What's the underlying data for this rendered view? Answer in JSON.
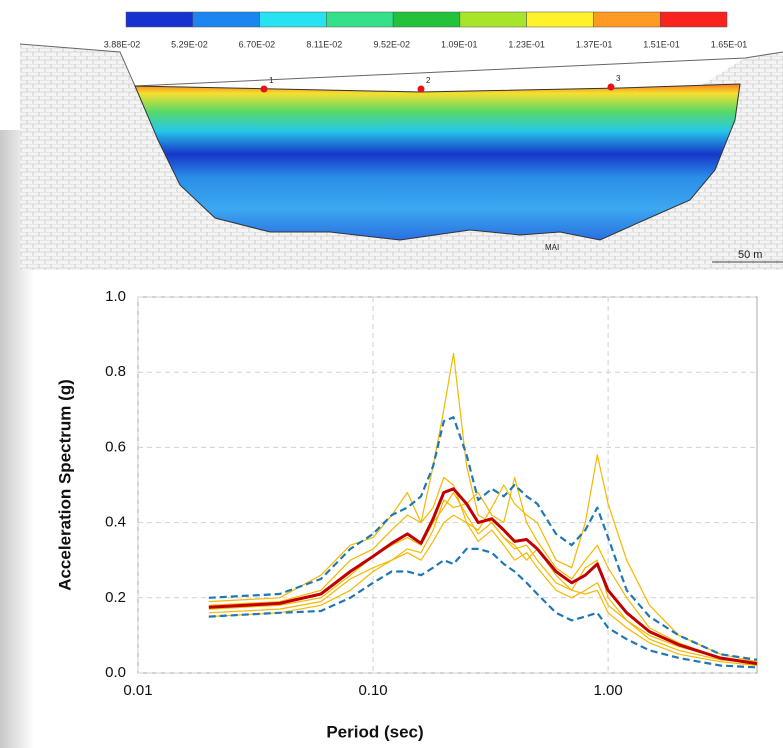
{
  "colorbar": {
    "colors": [
      "#1633d2",
      "#1b86ef",
      "#27e3f2",
      "#35e08a",
      "#22c23a",
      "#a8e52a",
      "#fff12a",
      "#ff9a22",
      "#f8221e"
    ],
    "labels": [
      "3.88E-02",
      "5.29E-02",
      "6.70E-02",
      "8.11E-02",
      "9.52E-02",
      "1.09E-01",
      "1.23E-01",
      "1.37E-01",
      "1.51E-01",
      "1.65E-01"
    ]
  },
  "section": {
    "markers": [
      "1",
      "2",
      "3"
    ],
    "label": "MAI",
    "scale": "50 m"
  },
  "chart_data": {
    "type": "line",
    "xlabel": "Period (sec)",
    "ylabel": "Acceleration Spectrum (g)",
    "xlog": true,
    "grid": true,
    "xlim": [
      0.01,
      4.3
    ],
    "ylim": [
      0,
      1
    ],
    "xticks": [
      0.01,
      {
        "value": 0.1,
        "label": "0.10"
      },
      {
        "value": 1,
        "label": "1.00"
      }
    ],
    "yticks": [
      {
        "value": 0,
        "label": "0.0"
      },
      {
        "value": 0.2,
        "label": "0.2"
      },
      {
        "value": 0.4,
        "label": "0.4"
      },
      {
        "value": 0.6,
        "label": "0.6"
      },
      {
        "value": 0.8,
        "label": "0.8"
      },
      {
        "value": 1,
        "label": "1.0"
      }
    ],
    "x": [
      0.02,
      0.04,
      0.06,
      0.08,
      0.1,
      0.12,
      0.14,
      0.16,
      0.18,
      0.2,
      0.22,
      0.25,
      0.28,
      0.32,
      0.36,
      0.4,
      0.45,
      0.5,
      0.6,
      0.7,
      0.8,
      0.9,
      1.0,
      1.2,
      1.5,
      2.0,
      3.0,
      4.3
    ],
    "series": [
      {
        "color": "#f5b800",
        "style": "solid",
        "width": 1.2,
        "values": [
          0.18,
          0.19,
          0.22,
          0.3,
          0.33,
          0.38,
          0.42,
          0.4,
          0.55,
          0.7,
          0.85,
          0.55,
          0.42,
          0.4,
          0.36,
          0.33,
          0.34,
          0.3,
          0.24,
          0.22,
          0.28,
          0.3,
          0.2,
          0.14,
          0.1,
          0.07,
          0.04,
          0.03
        ]
      },
      {
        "color": "#f5b800",
        "style": "solid",
        "width": 1.2,
        "values": [
          0.16,
          0.17,
          0.19,
          0.25,
          0.28,
          0.3,
          0.32,
          0.3,
          0.35,
          0.4,
          0.42,
          0.4,
          0.38,
          0.44,
          0.5,
          0.45,
          0.42,
          0.4,
          0.3,
          0.28,
          0.4,
          0.58,
          0.45,
          0.3,
          0.18,
          0.1,
          0.05,
          0.03
        ]
      },
      {
        "color": "#f5b800",
        "style": "solid",
        "width": 1.2,
        "values": [
          0.19,
          0.2,
          0.26,
          0.34,
          0.36,
          0.42,
          0.48,
          0.4,
          0.44,
          0.52,
          0.5,
          0.4,
          0.35,
          0.38,
          0.34,
          0.3,
          0.32,
          0.28,
          0.22,
          0.2,
          0.22,
          0.24,
          0.18,
          0.14,
          0.09,
          0.06,
          0.035,
          0.025
        ]
      },
      {
        "color": "#f5b800",
        "style": "solid",
        "width": 1.2,
        "values": [
          0.15,
          0.16,
          0.18,
          0.22,
          0.27,
          0.3,
          0.33,
          0.32,
          0.38,
          0.46,
          0.44,
          0.45,
          0.48,
          0.42,
          0.4,
          0.52,
          0.4,
          0.35,
          0.28,
          0.25,
          0.3,
          0.34,
          0.28,
          0.2,
          0.12,
          0.08,
          0.04,
          0.02
        ]
      },
      {
        "color": "#f5b800",
        "style": "solid",
        "width": 1.2,
        "values": [
          0.17,
          0.18,
          0.2,
          0.26,
          0.31,
          0.34,
          0.36,
          0.34,
          0.4,
          0.44,
          0.48,
          0.42,
          0.37,
          0.4,
          0.36,
          0.34,
          0.3,
          0.33,
          0.26,
          0.22,
          0.21,
          0.22,
          0.16,
          0.12,
          0.08,
          0.05,
          0.03,
          0.02
        ]
      },
      {
        "color": "#1f77b4",
        "style": "dashed",
        "width": 2.2,
        "values": [
          0.2,
          0.21,
          0.25,
          0.33,
          0.37,
          0.42,
          0.44,
          0.47,
          0.55,
          0.67,
          0.68,
          0.58,
          0.46,
          0.49,
          0.47,
          0.5,
          0.47,
          0.45,
          0.37,
          0.34,
          0.38,
          0.44,
          0.36,
          0.22,
          0.15,
          0.1,
          0.05,
          0.035
        ]
      },
      {
        "color": "#1f77b4",
        "style": "dashed",
        "width": 2.2,
        "values": [
          0.15,
          0.16,
          0.165,
          0.2,
          0.24,
          0.27,
          0.27,
          0.26,
          0.28,
          0.3,
          0.29,
          0.33,
          0.33,
          0.32,
          0.29,
          0.27,
          0.24,
          0.21,
          0.16,
          0.14,
          0.15,
          0.16,
          0.12,
          0.09,
          0.06,
          0.04,
          0.02,
          0.015
        ]
      },
      {
        "color": "#c00000",
        "style": "solid",
        "width": 3,
        "values": [
          0.175,
          0.185,
          0.21,
          0.27,
          0.31,
          0.345,
          0.37,
          0.345,
          0.41,
          0.48,
          0.49,
          0.45,
          0.4,
          0.41,
          0.38,
          0.35,
          0.355,
          0.33,
          0.27,
          0.24,
          0.26,
          0.29,
          0.22,
          0.16,
          0.11,
          0.075,
          0.04,
          0.025
        ]
      }
    ]
  }
}
